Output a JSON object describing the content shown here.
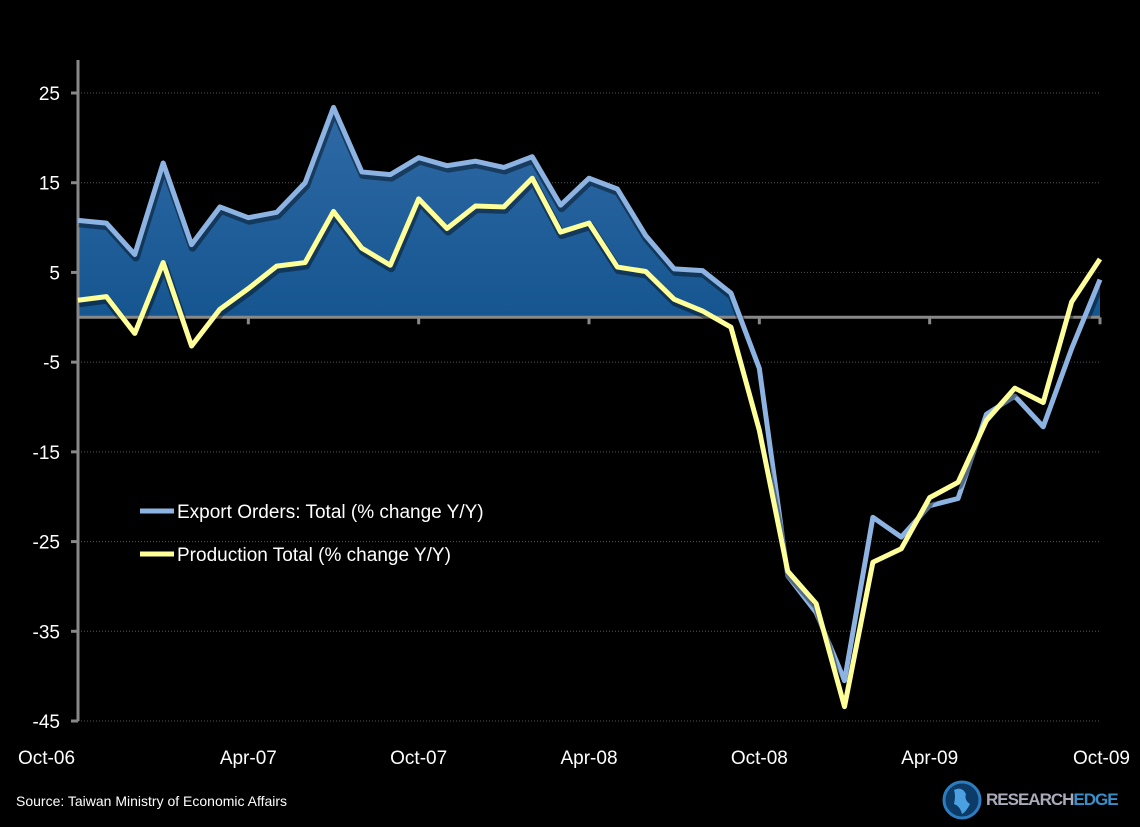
{
  "chart_data": {
    "type": "line",
    "title": "",
    "xlabel": "",
    "ylabel": "",
    "ylim": [
      -45,
      25
    ],
    "yticks": [
      "25",
      "15",
      "5",
      "-5",
      "-15",
      "-25",
      "-35",
      "-45"
    ],
    "ytick_values": [
      25,
      15,
      5,
      -5,
      -15,
      -25,
      -35,
      -45
    ],
    "xtick_labels": [
      "Oct-06",
      "Apr-07",
      "Oct-07",
      "Apr-08",
      "Oct-08",
      "Apr-09",
      "Oct-09"
    ],
    "x_frequency": "monthly",
    "x_start": "Oct-06",
    "x_end": "Oct-09",
    "grid": true,
    "legend_position": "lower-left",
    "series": [
      {
        "name": "Export Orders: Total (% change Y/Y)",
        "color": "#8db3e2",
        "fill": "#1f5b96",
        "values": [
          10.8,
          10.5,
          7.0,
          17.2,
          8.1,
          12.3,
          11.1,
          11.7,
          15.0,
          23.4,
          16.2,
          15.9,
          17.8,
          16.9,
          17.4,
          16.7,
          17.9,
          12.5,
          15.5,
          14.3,
          9.1,
          5.4,
          5.2,
          2.7,
          -5.7,
          -28.8,
          -32.9,
          -40.5,
          -22.3,
          -24.5,
          -21.0,
          -20.2,
          -10.8,
          -8.8,
          -12.2,
          -3.5,
          4.2
        ]
      },
      {
        "name": "Production Total (% change Y/Y)",
        "color": "#ffff99",
        "values": [
          1.9,
          2.3,
          -1.8,
          6.1,
          -3.2,
          0.9,
          3.2,
          5.7,
          6.1,
          11.8,
          7.7,
          5.8,
          13.2,
          9.9,
          12.4,
          12.3,
          15.5,
          9.5,
          10.5,
          5.6,
          5.1,
          2.0,
          0.7,
          -1.1,
          -12.6,
          -28.3,
          -31.9,
          -43.4,
          -27.3,
          -25.8,
          -20.1,
          -18.4,
          -11.5,
          -7.9,
          -9.5,
          1.7,
          6.5
        ]
      }
    ]
  },
  "footer": {
    "source": "Source: Taiwan Ministry of Economic Affairs",
    "logo_text_a": "RESEARCH",
    "logo_text_b": "EDGE"
  }
}
